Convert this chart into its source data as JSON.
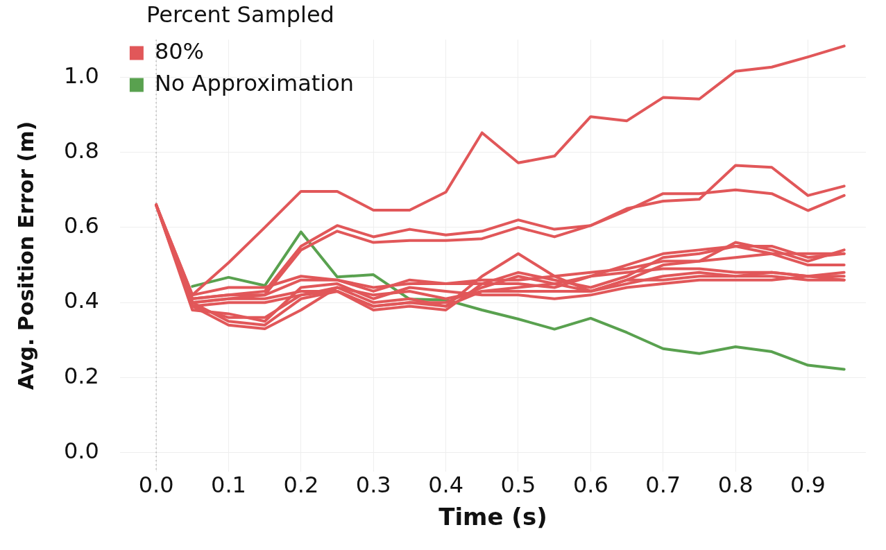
{
  "chart_data": {
    "type": "line",
    "xlabel": "Time (s)",
    "ylabel": "Avg. Position Error (m)",
    "legend_title": "Percent Sampled",
    "legend": "top left",
    "grid": true,
    "marker": "none",
    "line_style": "solid",
    "x": [
      0,
      0.05,
      0.1,
      0.15,
      0.2,
      0.25,
      0.3,
      0.35,
      0.4,
      0.45,
      0.5,
      0.55,
      0.6,
      0.65,
      0.7,
      0.75,
      0.8,
      0.85,
      0.9,
      0.95
    ],
    "xlim": [
      -0.05,
      0.98
    ],
    "xticks": [
      {
        "value": 0,
        "label": "0.0"
      },
      0.1,
      0.2,
      0.3,
      0.4,
      0.5,
      0.6,
      0.7,
      0.8,
      0.9
    ],
    "ylim": [
      -0.05,
      1.1
    ],
    "yticks": [
      {
        "value": 0,
        "label": "0.0"
      },
      0.2,
      0.4,
      0.6,
      0.8,
      {
        "value": 1,
        "label": "1.0"
      }
    ],
    "ref_lines": [
      {
        "axis": "x",
        "value": 0,
        "label": null,
        "color": "#aaaaaa",
        "line_style": "dotted"
      }
    ],
    "series": [
      {
        "name": "80%",
        "color": "#e15759",
        "values": [
          0.66,
          0.42,
          0.506,
          0.6,
          0.696,
          0.696,
          0.646,
          0.646,
          0.694,
          0.852,
          0.772,
          0.79,
          0.895,
          0.884,
          0.946,
          0.942,
          1.016,
          1.027,
          1.054,
          1.083
        ]
      },
      {
        "color": "#e15759",
        "values": [
          0.66,
          0.41,
          0.42,
          0.43,
          0.55,
          0.605,
          0.575,
          0.595,
          0.58,
          0.59,
          0.62,
          0.595,
          0.605,
          0.645,
          0.69,
          0.69,
          0.7,
          0.69,
          0.645,
          0.685
        ]
      },
      {
        "color": "#e15759",
        "values": [
          0.66,
          0.4,
          0.41,
          0.42,
          0.54,
          0.59,
          0.56,
          0.565,
          0.565,
          0.57,
          0.6,
          0.575,
          0.605,
          0.65,
          0.67,
          0.675,
          0.765,
          0.76,
          0.685,
          0.71
        ]
      },
      {
        "color": "#e15759",
        "values": [
          0.66,
          0.39,
          0.34,
          0.33,
          0.38,
          0.44,
          0.4,
          0.41,
          0.39,
          0.47,
          0.53,
          0.47,
          0.43,
          0.46,
          0.5,
          0.51,
          0.56,
          0.54,
          0.51,
          0.54
        ]
      },
      {
        "color": "#e15759",
        "values": [
          0.66,
          0.4,
          0.35,
          0.34,
          0.41,
          0.43,
          0.38,
          0.39,
          0.38,
          0.45,
          0.48,
          0.46,
          0.44,
          0.47,
          0.52,
          0.53,
          0.55,
          0.55,
          0.52,
          0.53
        ]
      },
      {
        "color": "#e15759",
        "values": [
          0.66,
          0.39,
          0.36,
          0.36,
          0.42,
          0.43,
          0.39,
          0.4,
          0.4,
          0.44,
          0.47,
          0.45,
          0.47,
          0.5,
          0.53,
          0.54,
          0.55,
          0.53,
          0.53,
          0.53
        ]
      },
      {
        "color": "#e15759",
        "values": [
          0.66,
          0.41,
          0.42,
          0.42,
          0.46,
          0.46,
          0.43,
          0.46,
          0.45,
          0.46,
          0.46,
          0.47,
          0.48,
          0.49,
          0.51,
          0.51,
          0.52,
          0.53,
          0.5,
          0.5
        ]
      },
      {
        "color": "#e15759",
        "values": [
          0.66,
          0.42,
          0.44,
          0.44,
          0.47,
          0.46,
          0.44,
          0.45,
          0.45,
          0.45,
          0.45,
          0.44,
          0.47,
          0.48,
          0.49,
          0.49,
          0.48,
          0.48,
          0.47,
          0.47
        ]
      },
      {
        "color": "#e15759",
        "values": [
          0.66,
          0.39,
          0.4,
          0.4,
          0.42,
          0.44,
          0.42,
          0.43,
          0.41,
          0.43,
          0.43,
          0.43,
          0.43,
          0.45,
          0.47,
          0.48,
          0.47,
          0.48,
          0.47,
          0.48
        ]
      },
      {
        "color": "#e15759",
        "values": [
          0.66,
          0.38,
          0.37,
          0.35,
          0.44,
          0.45,
          0.41,
          0.44,
          0.43,
          0.42,
          0.42,
          0.41,
          0.42,
          0.44,
          0.45,
          0.46,
          0.46,
          0.46,
          0.47,
          0.46
        ]
      },
      {
        "color": "#e15759",
        "values": [
          0.66,
          0.4,
          0.41,
          0.41,
          0.43,
          0.43,
          0.39,
          0.4,
          0.39,
          0.43,
          0.44,
          0.45,
          0.43,
          0.46,
          0.46,
          0.47,
          0.47,
          0.47,
          0.46,
          0.46
        ]
      },
      {
        "name": "No Approximation",
        "color": "#59a14f",
        "values": [
          null,
          0.443,
          0.467,
          0.445,
          0.588,
          0.468,
          0.474,
          0.409,
          0.407,
          0.38,
          0.356,
          0.329,
          0.358,
          0.32,
          0.277,
          0.264,
          0.282,
          0.269,
          0.233,
          0.222
        ]
      }
    ]
  }
}
